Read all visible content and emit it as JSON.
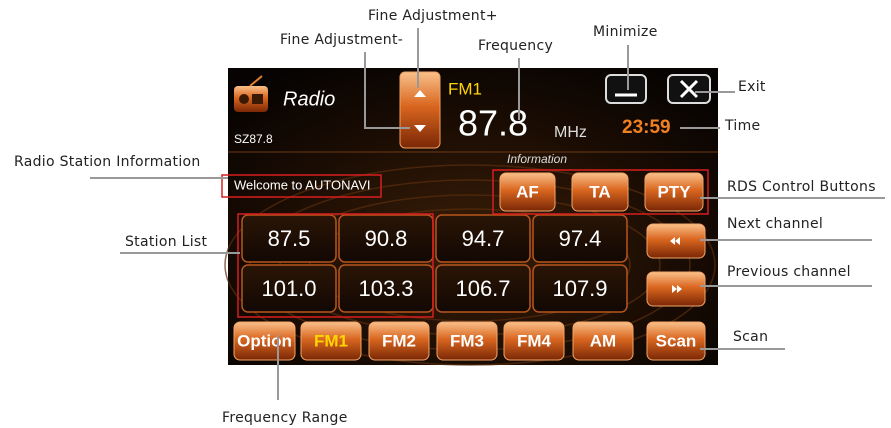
{
  "callouts": {
    "fine_adjust_plus": "Fine Adjustment+",
    "fine_adjust_minus": "Fine Adjustment-",
    "frequency": "Frequency",
    "minimize": "Minimize",
    "exit": "Exit",
    "time": "Time",
    "station_info": "Radio Station Information",
    "rds_buttons": "RDS Control Buttons",
    "station_list": "Station List",
    "next_channel": "Next channel",
    "previous_channel": "Previous channel",
    "scan": "Scan",
    "frequency_range": "Frequency Range"
  },
  "screen": {
    "title": "Radio",
    "station_name": "SZ87.8",
    "band": "FM1",
    "frequency": "87.8",
    "unit": "MHz",
    "time": "23:59",
    "info_heading": "Information",
    "rds_text": "Welcome to AUTONAVI",
    "rds_buttons": [
      "AF",
      "TA",
      "PTY"
    ],
    "presets": [
      "87.5",
      "90.8",
      "94.7",
      "97.4",
      "101.0",
      "103.3",
      "106.7",
      "107.9"
    ],
    "option": "Option",
    "bands": [
      "FM1",
      "FM2",
      "FM3",
      "FM4",
      "AM"
    ],
    "scan": "Scan"
  }
}
